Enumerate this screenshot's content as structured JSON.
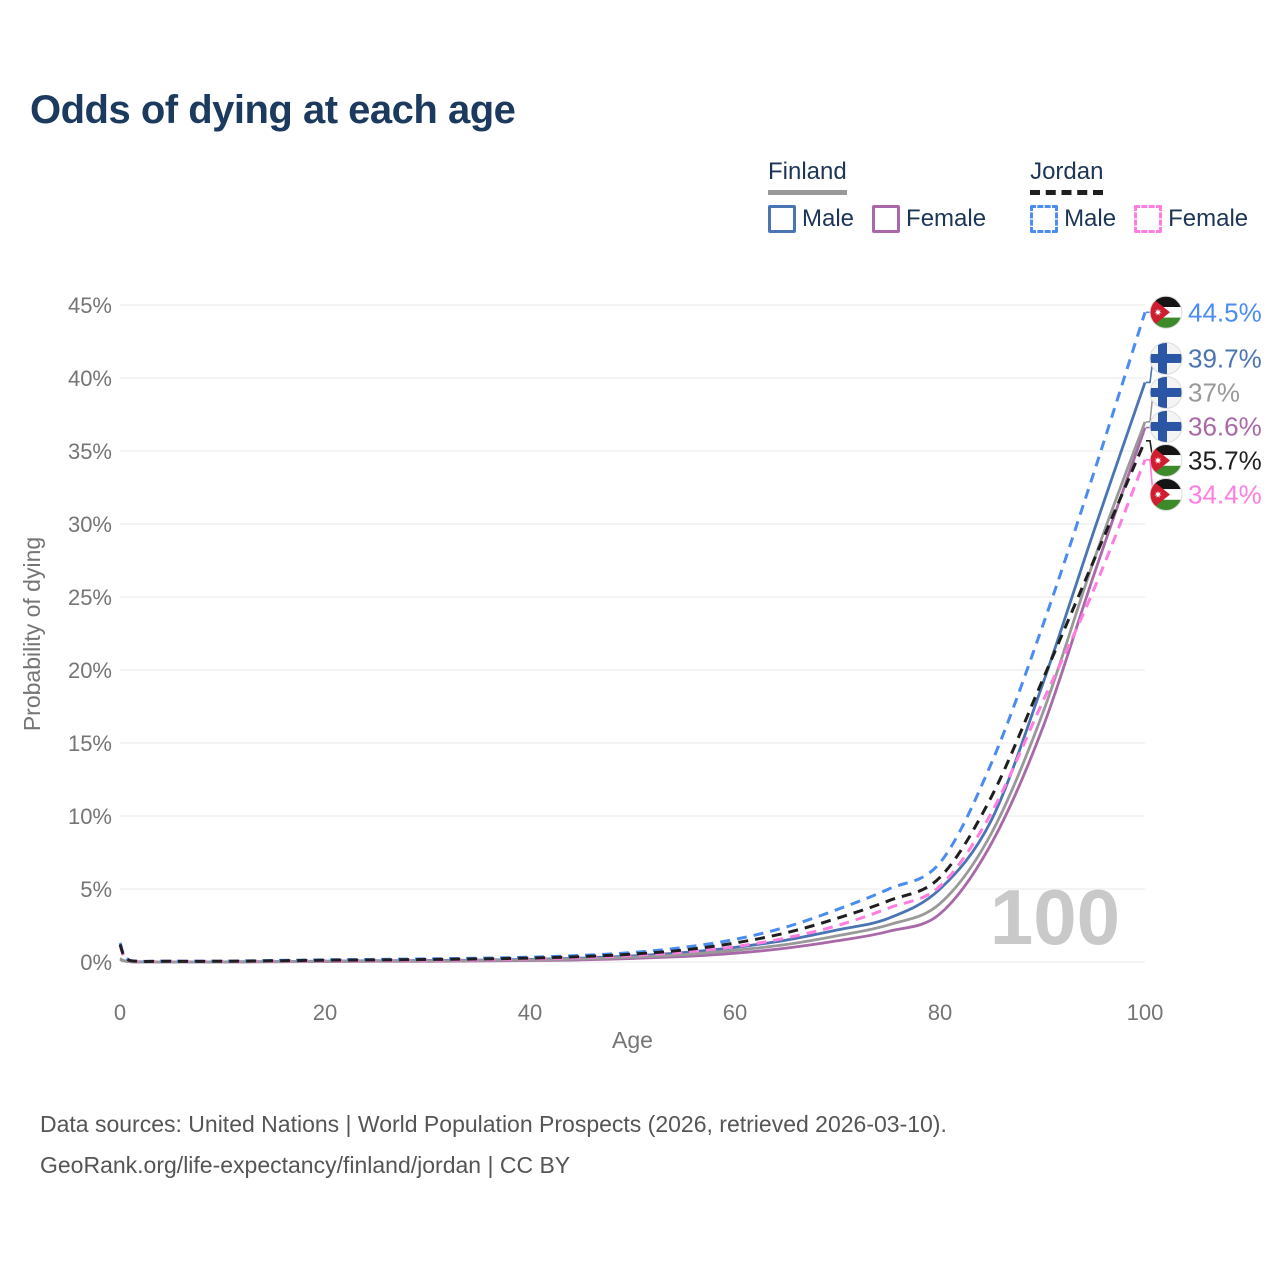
{
  "title": "Odds of dying at each age",
  "colors": {
    "title": "#1c3a5e",
    "legend_text": "#1d3557",
    "axis_text": "#757575",
    "grid": "#e8e8e8",
    "watermark": "#c9c9c9",
    "footer_text": "#555555"
  },
  "legend": {
    "groups": [
      {
        "name": "Finland",
        "line_style": "solid",
        "items": [
          {
            "label": "Male"
          },
          {
            "label": "Female"
          }
        ]
      },
      {
        "name": "Jordan",
        "line_style": "dashed",
        "items": [
          {
            "label": "Male"
          },
          {
            "label": "Female"
          }
        ]
      }
    ]
  },
  "chart_data": {
    "type": "line",
    "title": "Odds of dying at each age",
    "xlabel": "Age",
    "ylabel": "Probability of dying",
    "xlim": [
      0,
      100
    ],
    "ylim": [
      0,
      45
    ],
    "xticks": [
      0,
      20,
      40,
      60,
      80,
      100
    ],
    "yticks": [
      0,
      5,
      10,
      15,
      20,
      25,
      30,
      35,
      40,
      45
    ],
    "ytick_suffix": "%",
    "grid": "horizontal",
    "legend_position": "top-right",
    "watermark": "100",
    "x": [
      0,
      1,
      5,
      10,
      15,
      20,
      25,
      30,
      35,
      40,
      45,
      50,
      55,
      60,
      65,
      70,
      75,
      80,
      85,
      90,
      95,
      100
    ],
    "series": [
      {
        "id": "finland-male",
        "name": "Finland Male",
        "country": "finland",
        "sex": "male",
        "color": "#4a74b2",
        "dashed": false,
        "end_label": "39.7%",
        "end_value": 39.7,
        "values": [
          0.22,
          0.03,
          0.01,
          0.01,
          0.03,
          0.06,
          0.08,
          0.1,
          0.13,
          0.18,
          0.27,
          0.42,
          0.65,
          1.0,
          1.5,
          2.2,
          3.0,
          5.0,
          9.7,
          19.0,
          29.5,
          39.7
        ]
      },
      {
        "id": "finland-female",
        "name": "Finland Female",
        "country": "finland",
        "sex": "female",
        "color": "#a968a8",
        "dashed": false,
        "end_label": "36.6%",
        "end_value": 36.6,
        "values": [
          0.18,
          0.02,
          0.01,
          0.01,
          0.02,
          0.03,
          0.04,
          0.05,
          0.07,
          0.1,
          0.15,
          0.24,
          0.38,
          0.6,
          0.95,
          1.45,
          2.1,
          3.3,
          8.1,
          16.0,
          26.5,
          36.6
        ]
      },
      {
        "id": "finland-both",
        "name": "Finland Both sexes",
        "country": "finland",
        "sex": "both",
        "color": "#999999",
        "dashed": false,
        "end_label": "37%",
        "end_value": 37.0,
        "values": [
          0.2,
          0.02,
          0.01,
          0.01,
          0.02,
          0.04,
          0.06,
          0.07,
          0.1,
          0.14,
          0.21,
          0.33,
          0.51,
          0.8,
          1.2,
          1.8,
          2.55,
          4.0,
          8.8,
          17.0,
          27.5,
          37.0
        ]
      },
      {
        "id": "jordan-male",
        "name": "Jordan Male",
        "country": "jordan",
        "sex": "male",
        "color": "#4a8cf0",
        "dashed": true,
        "end_label": "44.5%",
        "end_value": 44.5,
        "values": [
          1.3,
          0.1,
          0.06,
          0.06,
          0.1,
          0.15,
          0.18,
          0.21,
          0.26,
          0.33,
          0.45,
          0.65,
          1.0,
          1.55,
          2.4,
          3.6,
          5.0,
          6.8,
          13.6,
          23.0,
          33.5,
          44.5
        ]
      },
      {
        "id": "jordan-female",
        "name": "Jordan Female",
        "country": "jordan",
        "sex": "female",
        "color": "#ff7ce0",
        "dashed": true,
        "end_label": "34.4%",
        "end_value": 34.4,
        "values": [
          1.1,
          0.08,
          0.05,
          0.04,
          0.06,
          0.08,
          0.1,
          0.12,
          0.16,
          0.21,
          0.3,
          0.45,
          0.68,
          1.05,
          1.65,
          2.5,
          3.7,
          5.2,
          10.2,
          17.8,
          25.5,
          34.4
        ]
      },
      {
        "id": "jordan-both",
        "name": "Jordan Both sexes",
        "country": "jordan",
        "sex": "both",
        "color": "#1f1f1f",
        "dashed": true,
        "end_label": "35.7%",
        "end_value": 35.7,
        "values": [
          1.2,
          0.09,
          0.05,
          0.05,
          0.08,
          0.12,
          0.14,
          0.17,
          0.21,
          0.27,
          0.37,
          0.54,
          0.82,
          1.3,
          2.0,
          3.0,
          4.2,
          5.8,
          11.3,
          19.3,
          27.5,
          35.7
        ]
      }
    ]
  },
  "footer": {
    "line1": "Data sources: United Nations | World Population Prospects (2026, retrieved 2026-03-10).",
    "line2": "GeoRank.org/life-expectancy/finland/jordan | CC BY"
  }
}
